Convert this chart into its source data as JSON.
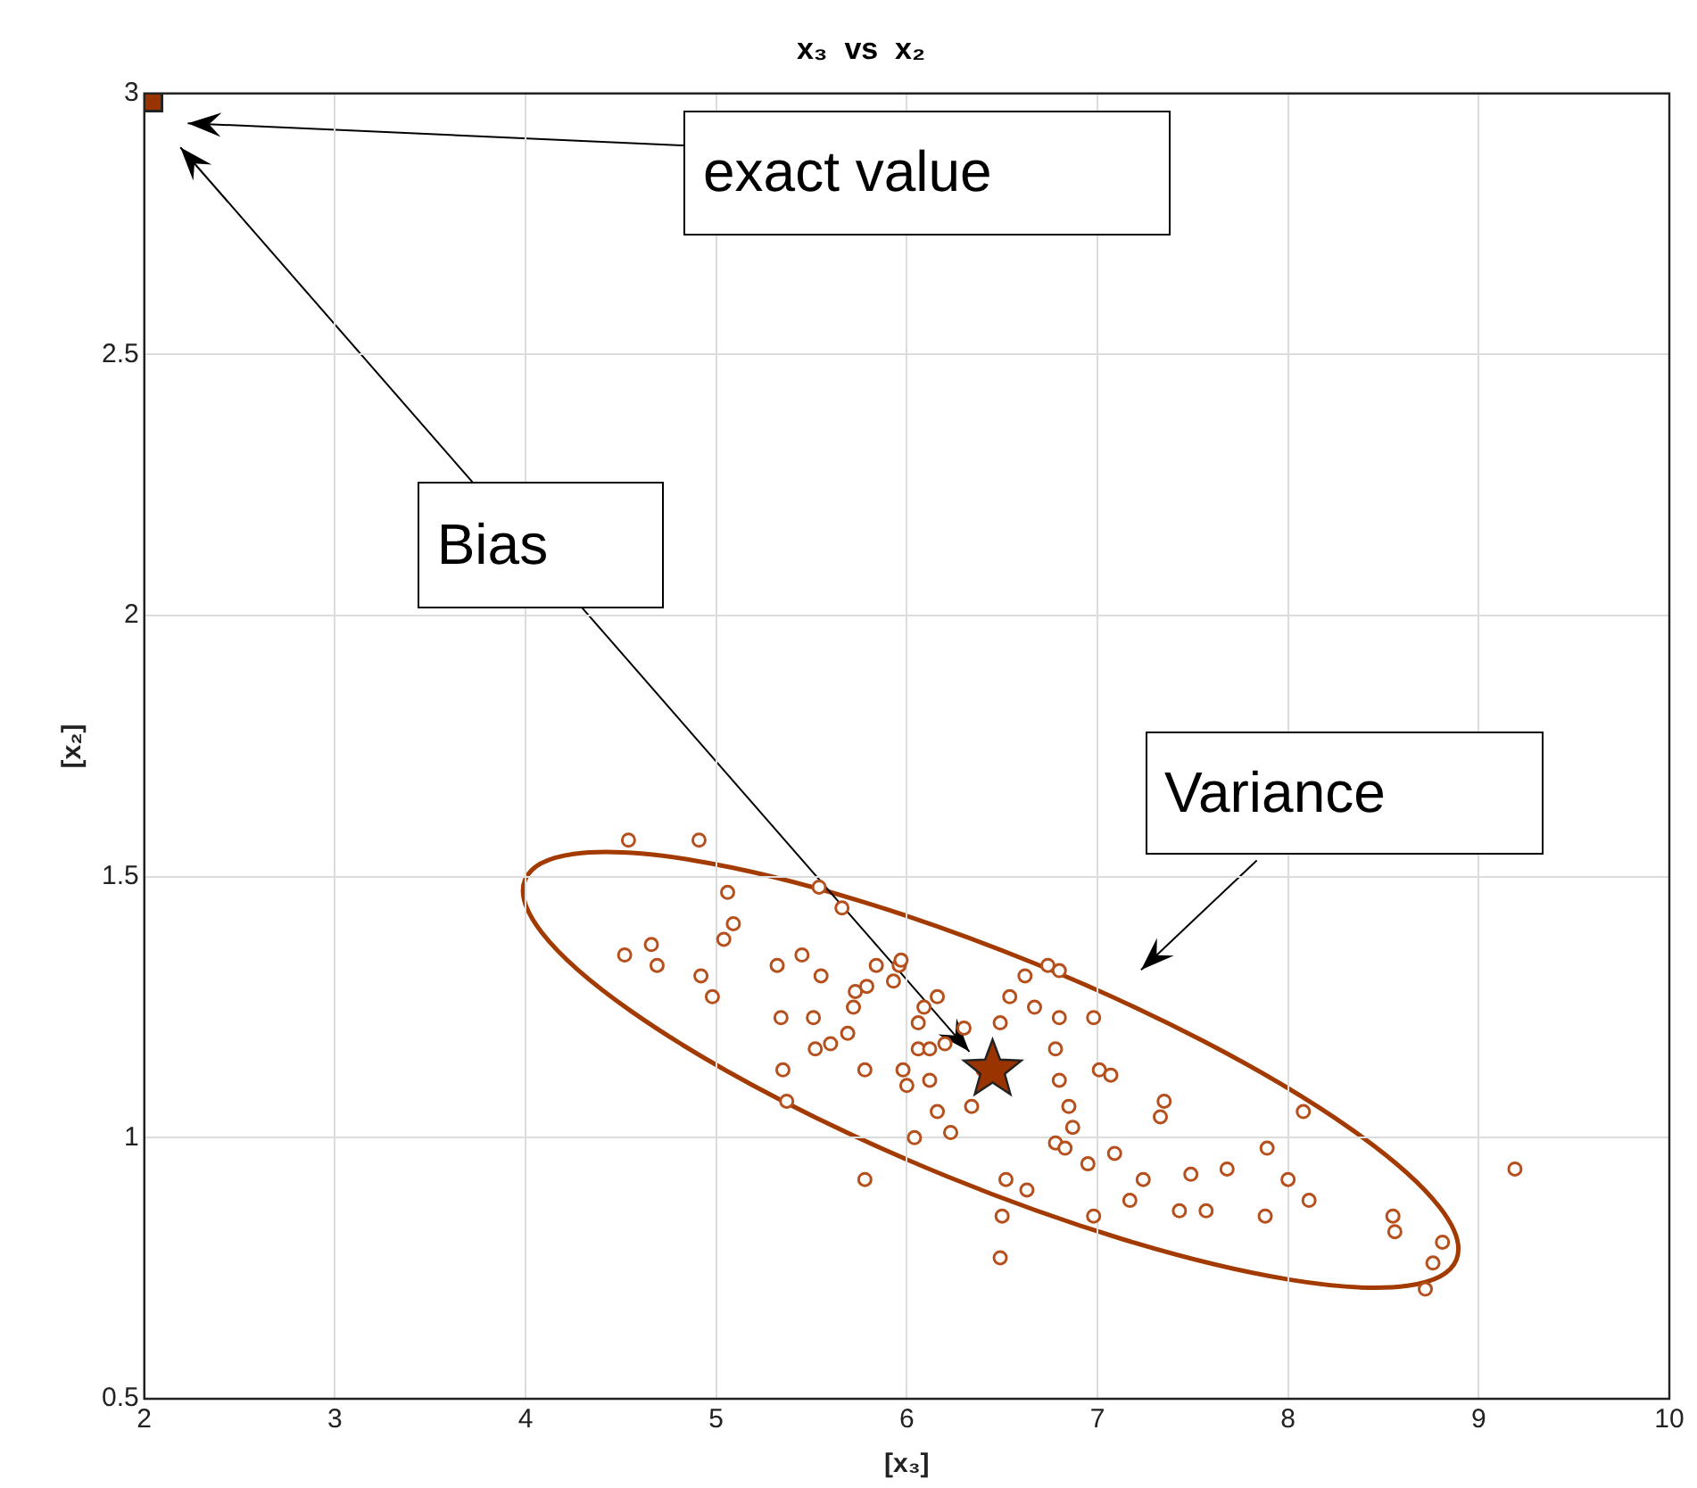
{
  "chart_data": {
    "type": "scatter",
    "title": "x₃  vs  x₂",
    "xlabel": "[x₃]",
    "ylabel": "[x₂]",
    "xlim": [
      2,
      10
    ],
    "ylim": [
      0.5,
      3
    ],
    "xticks": [
      2,
      3,
      4,
      5,
      6,
      7,
      8,
      9,
      10
    ],
    "yticks": [
      0.5,
      1,
      1.5,
      2,
      2.5,
      3
    ],
    "grid": true,
    "legend": false,
    "series": [
      {
        "marker": "circle",
        "color": "#b5501c",
        "x": [
          4.54,
          4.91,
          4.52,
          4.66,
          4.69,
          4.92,
          4.98,
          5.06,
          5.09,
          5.04,
          5.32,
          5.34,
          5.35,
          5.37,
          5.45,
          5.51,
          5.54,
          5.66,
          5.52,
          5.6,
          5.55,
          5.69,
          5.72,
          5.73,
          5.78,
          5.79,
          5.84,
          5.93,
          5.96,
          5.97,
          5.98,
          6.0,
          6.04,
          5.78,
          6.06,
          6.06,
          6.09,
          6.16,
          6.12,
          6.12,
          6.2,
          6.16,
          6.23,
          6.3,
          6.34,
          6.4,
          6.54,
          6.49,
          6.62,
          6.67,
          6.52,
          6.63,
          6.5,
          6.74,
          6.8,
          6.78,
          6.8,
          6.85,
          6.87,
          6.8,
          6.98,
          7.01,
          6.78,
          6.83,
          6.95,
          7.09,
          7.17,
          6.98,
          6.49,
          7.07,
          7.35,
          7.33,
          7.24,
          7.49,
          7.43,
          7.57,
          7.68,
          7.89,
          8.0,
          8.08,
          8.11,
          7.88,
          8.55,
          8.56,
          8.81,
          8.76,
          8.72,
          9.19
        ],
        "values": [
          1.57,
          1.57,
          1.35,
          1.37,
          1.33,
          1.31,
          1.27,
          1.47,
          1.41,
          1.38,
          1.33,
          1.23,
          1.13,
          1.07,
          1.35,
          1.23,
          1.48,
          1.44,
          1.17,
          1.18,
          1.31,
          1.2,
          1.25,
          1.28,
          1.13,
          1.29,
          1.33,
          1.3,
          1.33,
          1.34,
          1.13,
          1.1,
          1.0,
          0.92,
          1.17,
          1.22,
          1.25,
          1.27,
          1.17,
          1.11,
          1.18,
          1.05,
          1.01,
          1.21,
          1.06,
          1.13,
          1.27,
          1.22,
          1.31,
          1.25,
          0.92,
          0.9,
          0.85,
          1.33,
          1.23,
          1.17,
          1.11,
          1.06,
          1.02,
          1.32,
          1.23,
          1.13,
          0.99,
          0.98,
          0.95,
          0.97,
          0.88,
          0.85,
          0.77,
          1.12,
          1.07,
          1.04,
          0.92,
          0.93,
          0.86,
          0.86,
          0.94,
          0.98,
          0.92,
          1.05,
          0.88,
          0.85,
          0.85,
          0.82,
          0.8,
          0.76,
          0.71,
          0.94
        ]
      },
      {
        "marker": "star",
        "color": "#993300",
        "x": [
          6.45
        ],
        "values": [
          1.13
        ]
      },
      {
        "marker": "square",
        "color": "#993300",
        "x": [
          2
        ],
        "values": [
          3
        ]
      }
    ],
    "annotations": [
      "exact value",
      "Bias",
      "Variance"
    ]
  }
}
